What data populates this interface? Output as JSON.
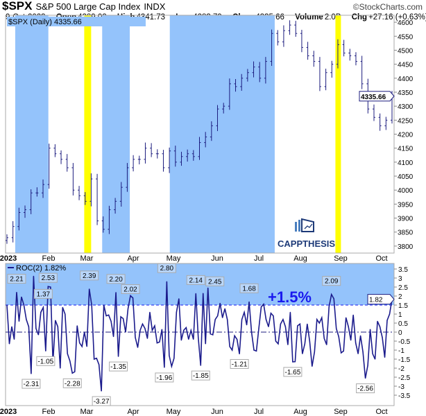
{
  "header": {
    "symbol": "$SPX",
    "name": "S&P 500 Large Cap Index",
    "exchange": "INDX",
    "copyright": "©StockCharts.com",
    "date": "9-Oct-2023",
    "open_label": "Open",
    "open": "4289.02",
    "high_label": "High",
    "high": "4341.73",
    "low_label": "Low",
    "low": "4283.79",
    "close_label": "Close",
    "close": "4335.66",
    "volume_label": "Volume",
    "volume": "2.0B",
    "chg_label": "Chg",
    "chg": "+27.16 (+0.63%)",
    "chg_icon": "up-triangle-icon"
  },
  "logo": {
    "text": "CAPPTHESIS"
  },
  "colors": {
    "blue_shade": "#94c3fb",
    "yellow_shade": "#ffff00",
    "bars": "#1b1b7e",
    "roc_line": "#1b1b8c",
    "annotation": "#1a1aee"
  },
  "chart_data": [
    {
      "type": "ohlc",
      "legend": "$SPX (Daily) 4335.66",
      "last_value_badge": "4335.66",
      "x_range": [
        "2023-01-03",
        "2023-10-09"
      ],
      "month_labels": [
        "2023",
        "Feb",
        "Mar",
        "Apr",
        "May",
        "Jun",
        "Jul",
        "Aug",
        "Sep",
        "Oct"
      ],
      "ylim": [
        3775,
        4625
      ],
      "y_ticks": [
        3800,
        3850,
        3900,
        3950,
        4000,
        4050,
        4100,
        4150,
        4200,
        4250,
        4300,
        4350,
        4400,
        4450,
        4500,
        4550,
        4600
      ],
      "closes": [
        3830,
        3870,
        3920,
        3930,
        3990,
        3990,
        4020,
        4150,
        4130,
        4110,
        4080,
        4000,
        3980,
        3960,
        4040,
        3890,
        3860,
        3930,
        3960,
        4010,
        4080,
        4110,
        4110,
        4150,
        4130,
        4130,
        4080,
        4140,
        4100,
        4120,
        4130,
        4120,
        4170,
        4190,
        4230,
        4290,
        4300,
        4380,
        4370,
        4400,
        4420,
        4440,
        4400,
        4460,
        4560,
        4530,
        4570,
        4590,
        4560,
        4510,
        4480,
        4460,
        4370,
        4420,
        4450,
        4520,
        4490,
        4480,
        4460,
        4380,
        4290,
        4260,
        4230,
        4250,
        4335.66
      ],
      "shaded_periods": [
        {
          "color": "blue",
          "from": "2023-01-09",
          "to": "2023-01-31"
        },
        {
          "color": "yellow",
          "from": "2023-02-28",
          "to": "2023-03-03"
        },
        {
          "color": "blue",
          "from": "2023-03-13",
          "to": "2023-03-31"
        },
        {
          "color": "blue",
          "from": "2023-05-01",
          "to": "2023-07-14"
        },
        {
          "color": "yellow",
          "from": "2023-08-29",
          "to": "2023-08-31"
        }
      ]
    },
    {
      "type": "line",
      "legend": "ROC(2) 1.82%",
      "last_value_badge": "1.82",
      "x_range": [
        "2023-01-03",
        "2023-10-09"
      ],
      "month_labels": [
        "2023",
        "Feb",
        "Mar",
        "Apr",
        "May",
        "Jun",
        "Jul",
        "Aug",
        "Sep",
        "Oct"
      ],
      "ylim": [
        -4.0,
        3.9
      ],
      "y_ticks": [
        3.5,
        3.0,
        2.5,
        2.0,
        1.5,
        1.0,
        0.5,
        0.0,
        -0.5,
        -1.0,
        -1.5,
        -2.0,
        -2.5,
        -3.0,
        -3.5
      ],
      "threshold": 1.5,
      "threshold_label": "+1.5%",
      "values": [
        1.5,
        -0.65,
        0.3,
        -0.4,
        2.21,
        0.6,
        1.95,
        1.5,
        0.7,
        0.3,
        -2.31,
        3.1,
        0.2,
        -0.15,
        1.1,
        1.37,
        -1.05,
        2.53,
        2.5,
        -1.7,
        0.65,
        0.3,
        -2.0,
        1.37,
        1.0,
        -1.2,
        -1.6,
        -2.28,
        -2.2,
        0.35,
        -0.6,
        -0.8,
        0.0,
        -0.8,
        2.39,
        1.5,
        -1.5,
        -1.45,
        -1.8,
        -3.27,
        1.5,
        0.9,
        0.95,
        0.6,
        -0.25,
        2.2,
        -1.35,
        0.85,
        0.75,
        0.0,
        1.3,
        2.02,
        1.9,
        -0.3,
        -0.85,
        0.1,
        0.45,
        0.2,
        -0.35,
        1.1,
        0.1,
        0.35,
        -0.6,
        -0.55,
        0.15,
        -1.96,
        2.8,
        -1.3,
        -1.9,
        -1.45,
        1.1,
        1.85,
        -0.45,
        0.1,
        0.25,
        -0.4,
        0.1,
        -0.4,
        2.14,
        -0.3,
        -1.85,
        2.15,
        -0.65,
        2.45,
        -0.1,
        -0.15,
        0.7,
        0.9,
        1.6,
        0.8,
        1.3,
        0.7,
        -0.8,
        -1.0,
        -0.2,
        -0.4,
        -1.21,
        0.7,
        1.1,
        0.4,
        1.68,
        0.0,
        -1.0,
        -1.05,
        0.2,
        1.4,
        1.55,
        0.7,
        0.3,
        1.05,
        0.9,
        -0.5,
        -0.65,
        0.45,
        0.7,
        0.3,
        -0.7,
        1.1,
        -1.65,
        -1.64,
        0.35,
        0.45,
        -1.2,
        -0.65,
        0.45,
        -0.5,
        -1.9,
        -1.1,
        0.7,
        0.5,
        0.8,
        -0.35,
        -0.7,
        1.4,
        2.09,
        1.85,
        0.2,
        -0.25,
        -1.15,
        -1.05,
        0.8,
        0.3,
        -0.45,
        0.95,
        -0.6,
        -1.2,
        -0.2,
        -1.1,
        -2.56,
        -1.85,
        0.15,
        -1.2,
        -1.5,
        0.6,
        0.3,
        -0.3,
        -1.4,
        0.65,
        1.0,
        1.82
      ],
      "labeled_extremes": [
        "2.21",
        "2.53",
        "1.37",
        "2.39",
        "2.20",
        "2.02",
        "2.80",
        "2.14",
        "2.45",
        "1.68",
        "2.09",
        "-2.31",
        "-1.05",
        "-2.28",
        "-3.27",
        "-1.35",
        "-1.96",
        "-1.85",
        "-1.21",
        "-1.65",
        "-2.56"
      ]
    }
  ]
}
